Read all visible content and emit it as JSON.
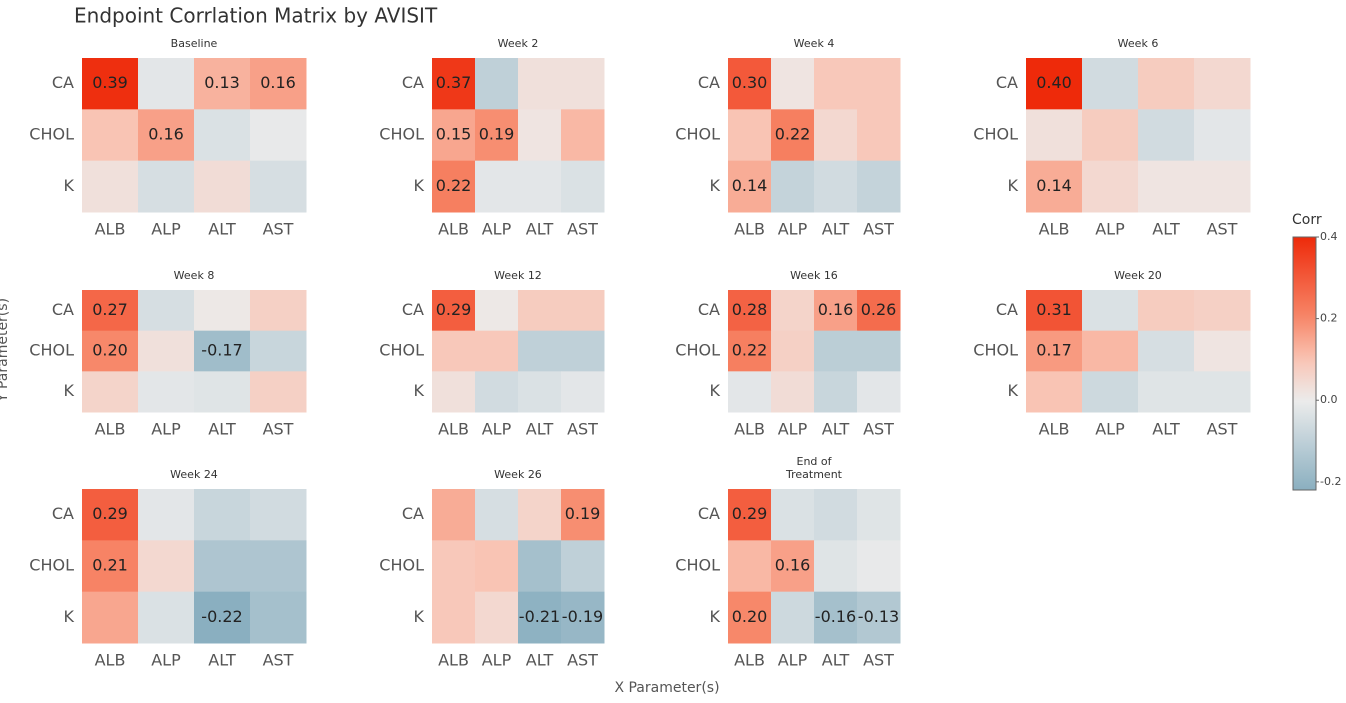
{
  "chart_data": {
    "type": "heatmap",
    "title": "Endpoint Corrlation Matrix by AVISIT",
    "xlabel": "X Parameter(s)",
    "ylabel": "Y Parameter(s)",
    "x_categories": [
      "ALB",
      "ALP",
      "ALT",
      "AST"
    ],
    "y_categories": [
      "CA",
      "CHOL",
      "K"
    ],
    "facets": [
      {
        "name": "Baseline",
        "values": [
          [
            0.39,
            -0.02,
            0.13,
            0.16
          ],
          [
            0.1,
            0.16,
            -0.04,
            -0.01
          ],
          [
            0.03,
            -0.05,
            0.04,
            -0.05
          ]
        ],
        "value_labels": [
          [
            "0.39",
            null,
            "0.13",
            "0.16"
          ],
          [
            null,
            "0.16",
            null,
            null
          ],
          [
            null,
            null,
            null,
            null
          ]
        ]
      },
      {
        "name": "Week 2",
        "values": [
          [
            0.37,
            -0.1,
            0.03,
            0.03
          ],
          [
            0.15,
            0.19,
            0.02,
            0.12
          ],
          [
            0.22,
            -0.02,
            -0.02,
            -0.04
          ]
        ],
        "value_labels": [
          [
            "0.37",
            null,
            null,
            null
          ],
          [
            "0.15",
            "0.19",
            null,
            null
          ],
          [
            "0.22",
            null,
            null,
            null
          ]
        ]
      },
      {
        "name": "Week 4",
        "values": [
          [
            0.3,
            0.02,
            0.09,
            0.09
          ],
          [
            0.1,
            0.22,
            0.05,
            0.09
          ],
          [
            0.14,
            -0.09,
            -0.06,
            -0.09
          ]
        ],
        "value_labels": [
          [
            "0.30",
            null,
            null,
            null
          ],
          [
            null,
            "0.22",
            null,
            null
          ],
          [
            "0.14",
            null,
            null,
            null
          ]
        ]
      },
      {
        "name": "Week 6",
        "values": [
          [
            0.4,
            -0.06,
            0.08,
            0.05
          ],
          [
            0.03,
            0.08,
            -0.06,
            -0.02
          ],
          [
            0.14,
            0.05,
            0.02,
            0.02
          ]
        ],
        "value_labels": [
          [
            "0.40",
            null,
            null,
            null
          ],
          [
            null,
            null,
            null,
            null
          ],
          [
            "0.14",
            null,
            null,
            null
          ]
        ]
      },
      {
        "name": "Week 8",
        "values": [
          [
            0.27,
            -0.05,
            0.01,
            0.07
          ],
          [
            0.2,
            0.03,
            -0.17,
            -0.08
          ],
          [
            0.06,
            -0.02,
            -0.03,
            0.07
          ]
        ],
        "value_labels": [
          [
            "0.27",
            null,
            null,
            null
          ],
          [
            "0.20",
            null,
            "-0.17",
            null
          ],
          [
            null,
            null,
            null,
            null
          ]
        ]
      },
      {
        "name": "Week 12",
        "values": [
          [
            0.29,
            0.01,
            0.08,
            0.08
          ],
          [
            0.09,
            0.09,
            -0.1,
            -0.1
          ],
          [
            0.03,
            -0.06,
            -0.04,
            -0.02
          ]
        ],
        "value_labels": [
          [
            "0.29",
            null,
            null,
            null
          ],
          [
            null,
            null,
            null,
            null
          ],
          [
            null,
            null,
            null,
            null
          ]
        ]
      },
      {
        "name": "Week 16",
        "values": [
          [
            0.28,
            0.06,
            0.16,
            0.26
          ],
          [
            0.22,
            0.07,
            -0.11,
            -0.11
          ],
          [
            -0.02,
            0.04,
            -0.08,
            -0.02
          ]
        ],
        "value_labels": [
          [
            "0.28",
            null,
            "0.16",
            "0.26"
          ],
          [
            "0.22",
            null,
            null,
            null
          ],
          [
            null,
            null,
            null,
            null
          ]
        ]
      },
      {
        "name": "Week 20",
        "values": [
          [
            0.31,
            -0.04,
            0.08,
            0.07
          ],
          [
            0.17,
            0.12,
            -0.05,
            0.02
          ],
          [
            0.1,
            -0.07,
            -0.03,
            -0.03
          ]
        ],
        "value_labels": [
          [
            "0.31",
            null,
            null,
            null
          ],
          [
            "0.17",
            null,
            null,
            null
          ],
          [
            null,
            null,
            null,
            null
          ]
        ]
      },
      {
        "name": "Week 24",
        "values": [
          [
            0.29,
            -0.02,
            -0.08,
            -0.06
          ],
          [
            0.21,
            0.05,
            -0.14,
            -0.14
          ],
          [
            0.15,
            -0.04,
            -0.22,
            -0.16
          ]
        ],
        "value_labels": [
          [
            "0.29",
            null,
            null,
            null
          ],
          [
            "0.21",
            null,
            null,
            null
          ],
          [
            null,
            null,
            "-0.22",
            null
          ]
        ]
      },
      {
        "name": "Week 26",
        "values": [
          [
            0.14,
            -0.05,
            0.06,
            0.19
          ],
          [
            0.09,
            0.1,
            -0.16,
            -0.1
          ],
          [
            0.09,
            0.05,
            -0.21,
            -0.19
          ]
        ],
        "value_labels": [
          [
            null,
            null,
            null,
            "0.19"
          ],
          [
            null,
            null,
            null,
            null
          ],
          [
            null,
            null,
            "-0.21",
            "-0.19"
          ]
        ]
      },
      {
        "name": "End of\nTreatment",
        "values": [
          [
            0.29,
            -0.04,
            -0.06,
            -0.03
          ],
          [
            0.12,
            0.16,
            -0.03,
            -0.01
          ],
          [
            0.2,
            -0.07,
            -0.16,
            -0.13
          ]
        ],
        "value_labels": [
          [
            "0.29",
            null,
            null,
            null
          ],
          [
            null,
            "0.16",
            null,
            null
          ],
          [
            "0.20",
            null,
            "-0.16",
            "-0.13"
          ]
        ]
      }
    ],
    "colorbar": {
      "title": "Corr",
      "lim": [
        -0.22,
        0.4
      ],
      "ticks": [
        0.4,
        0.2,
        {
          "value": 0,
          "label": "0.0"
        },
        -0.2
      ]
    }
  }
}
